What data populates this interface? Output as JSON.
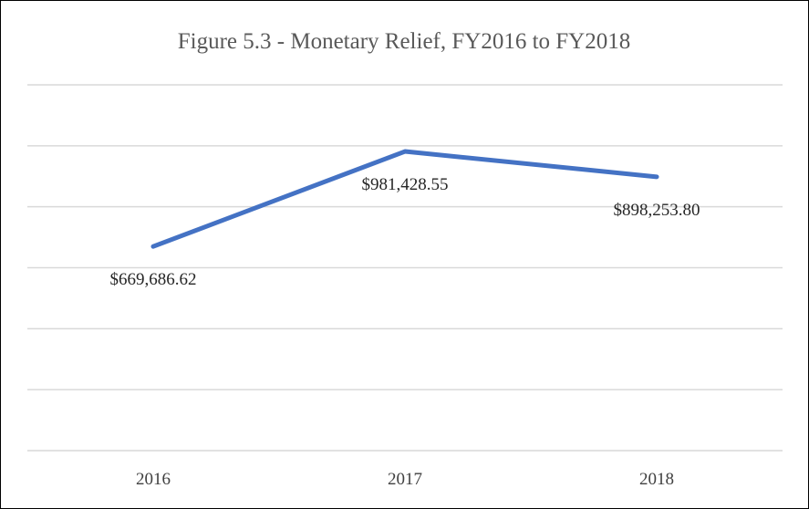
{
  "chart_data": {
    "type": "line",
    "title": "Figure  5.3 - Monetary Relief, FY2016 to FY2018",
    "xlabel": "",
    "ylabel": "",
    "categories": [
      "2016",
      "2017",
      "2018"
    ],
    "series": [
      {
        "values": [
          669686.62,
          981428.55,
          898253.8
        ],
        "labels": [
          "$669,686.62",
          "$981,428.55",
          "$898,253.80"
        ],
        "color": "#4472c4"
      }
    ],
    "ylim": [
      0,
      1200000
    ],
    "grid": true,
    "legend": "none",
    "y_tick_labels_shown": false
  }
}
